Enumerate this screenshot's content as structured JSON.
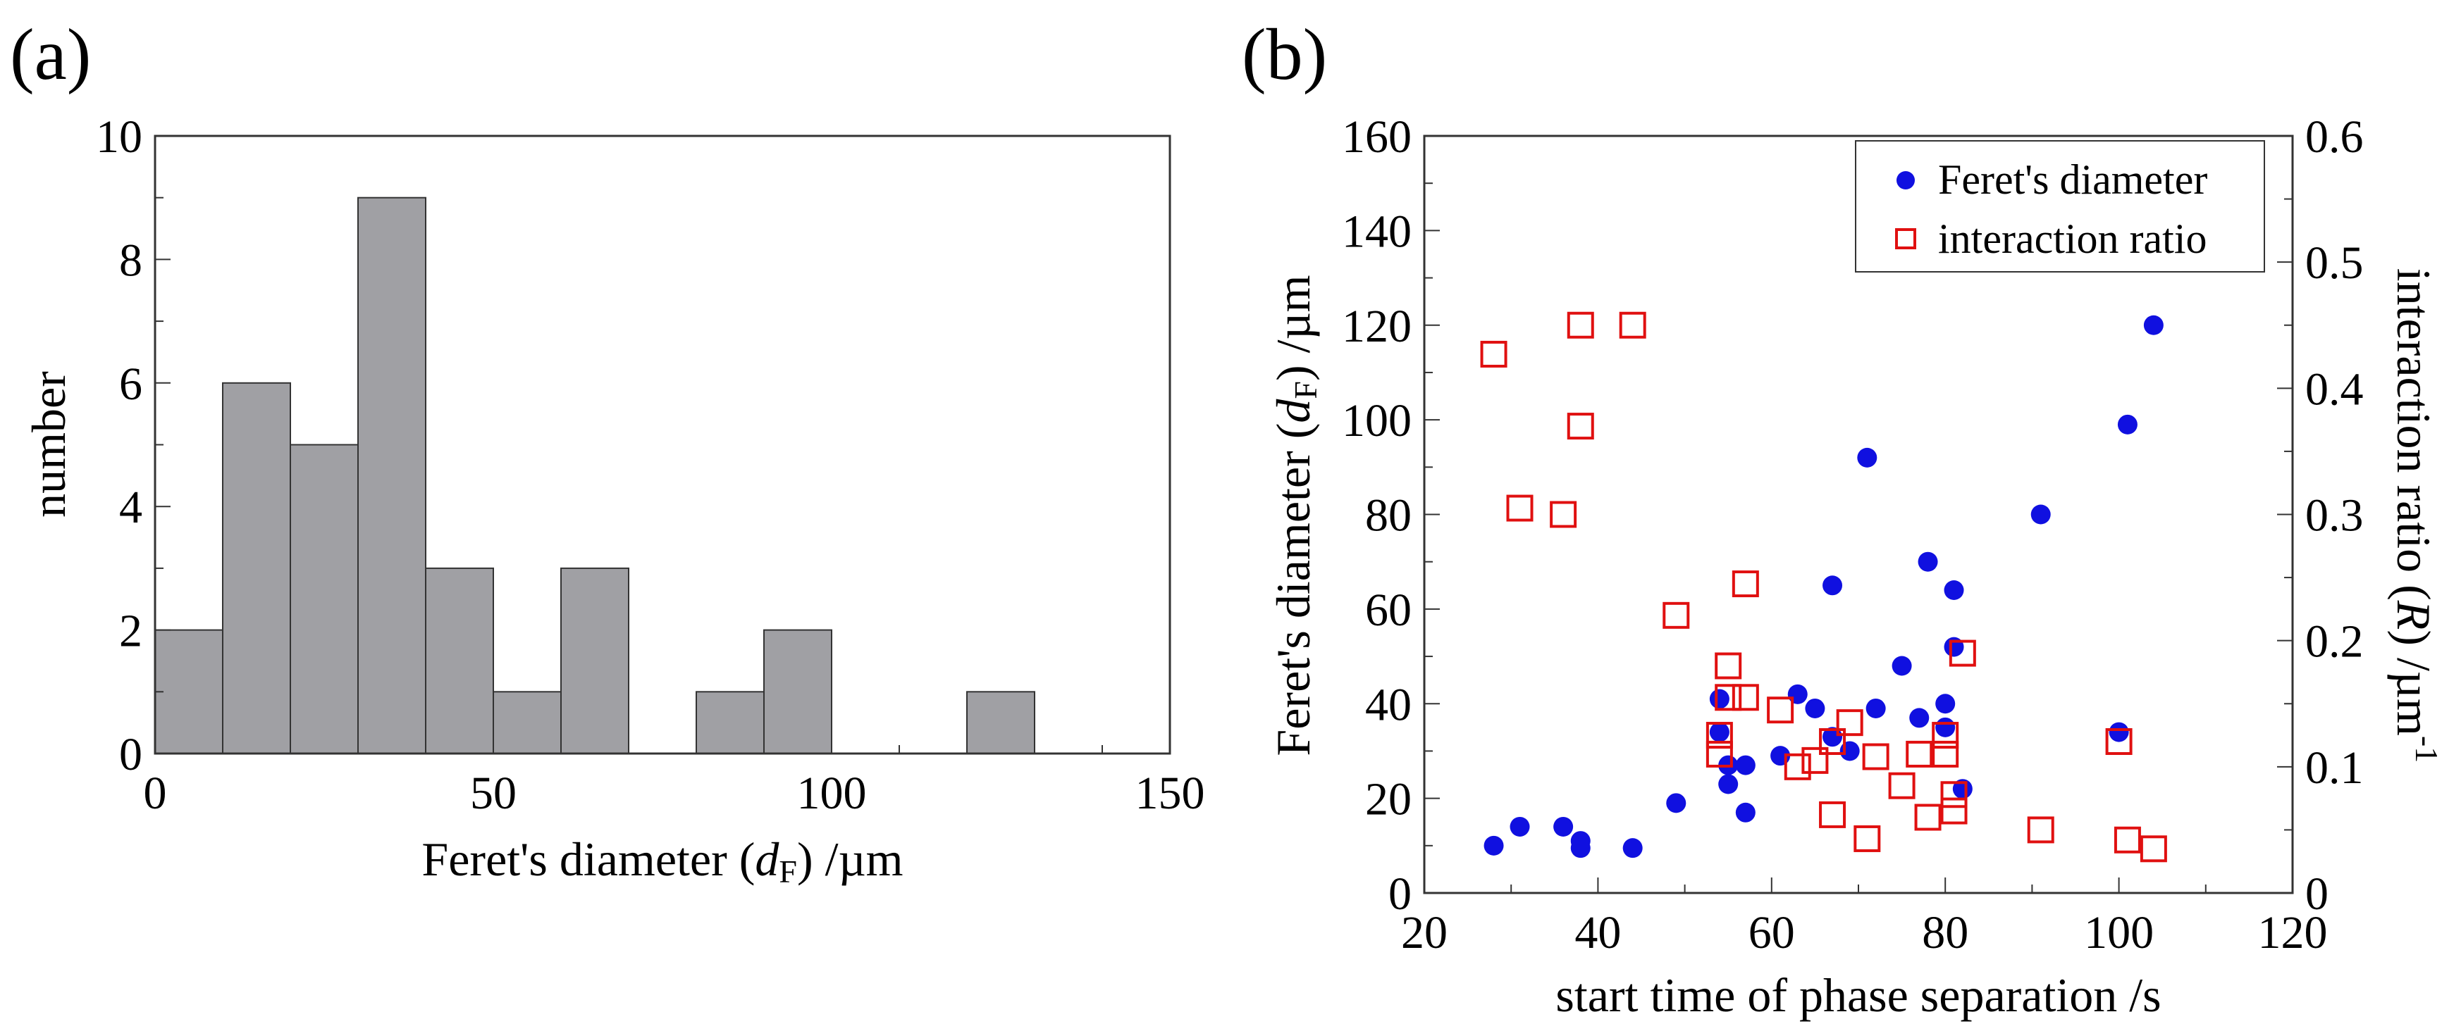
{
  "panel_a": {
    "label": "(a)",
    "chart_data": {
      "type": "bar",
      "title": "",
      "xlabel_pre": "Feret's diameter (",
      "xlabel_var": "d",
      "xlabel_sub": "F",
      "xlabel_post": ") /µm",
      "ylabel": "number",
      "xlim": [
        0,
        150
      ],
      "ylim": [
        0,
        10
      ],
      "xticks": [
        0,
        50,
        100,
        150
      ],
      "yticks": [
        0,
        2,
        4,
        6,
        8,
        10
      ],
      "bin_width": 10,
      "bin_starts": [
        0,
        10,
        20,
        30,
        40,
        50,
        60,
        70,
        80,
        90,
        100,
        110,
        120,
        130,
        140
      ],
      "values": [
        2,
        6,
        5,
        9,
        3,
        1,
        3,
        0,
        1,
        2,
        0,
        0,
        1,
        0,
        0
      ],
      "bar_color": "#a0a0a4",
      "grid": false
    }
  },
  "panel_b": {
    "label": "(b)",
    "chart_data": {
      "type": "scatter",
      "title": "",
      "xlabel": "start time of phase separation /s",
      "ylabel_pre": "Feret's diameter (",
      "ylabel_var": "d",
      "ylabel_sub": "F",
      "ylabel_post": ") /µm",
      "y2label_pre": "interaction ratio (",
      "y2label_var": "R",
      "y2label_post": ") /µm",
      "y2label_sup": "-1",
      "xlim": [
        20,
        120
      ],
      "ylim": [
        0,
        160
      ],
      "y2lim": [
        0,
        0.6
      ],
      "xticks": [
        20,
        40,
        60,
        80,
        100,
        120
      ],
      "yticks": [
        0,
        20,
        40,
        60,
        80,
        100,
        120,
        140,
        160
      ],
      "y2ticks": [
        0,
        0.1,
        0.2,
        0.3,
        0.4,
        0.5,
        0.6
      ],
      "y2tick_labels": [
        "0",
        "0.1",
        "0.2",
        "0.3",
        "0.4",
        "0.5",
        "0.6"
      ],
      "legend_position": "top-right",
      "grid": false,
      "series": [
        {
          "name": "Feret's diameter",
          "marker": "filled-circle",
          "color": "#1010e0",
          "axis": "left",
          "points": [
            [
              28,
              10
            ],
            [
              31,
              14
            ],
            [
              36,
              14
            ],
            [
              38,
              11
            ],
            [
              38,
              9.5
            ],
            [
              44,
              9.5
            ],
            [
              49,
              19
            ],
            [
              54,
              41
            ],
            [
              54,
              34
            ],
            [
              55,
              27
            ],
            [
              55,
              23
            ],
            [
              57,
              27
            ],
            [
              57,
              17
            ],
            [
              61,
              29
            ],
            [
              63,
              42
            ],
            [
              65,
              39
            ],
            [
              67,
              65
            ],
            [
              67,
              33
            ],
            [
              69,
              30
            ],
            [
              71,
              92
            ],
            [
              72,
              39
            ],
            [
              75,
              48
            ],
            [
              77,
              37
            ],
            [
              78,
              70
            ],
            [
              80,
              40
            ],
            [
              80,
              35
            ],
            [
              81,
              64
            ],
            [
              81,
              52
            ],
            [
              82,
              22
            ],
            [
              91,
              80
            ],
            [
              100,
              34
            ],
            [
              101,
              99
            ],
            [
              104,
              120
            ]
          ]
        },
        {
          "name": "interaction ratio",
          "marker": "open-square",
          "color": "#e01010",
          "axis": "right",
          "points": [
            [
              28,
              0.427
            ],
            [
              31,
              0.305
            ],
            [
              36,
              0.3
            ],
            [
              38,
              0.45
            ],
            [
              38,
              0.37
            ],
            [
              44,
              0.45
            ],
            [
              49,
              0.22
            ],
            [
              54,
              0.125
            ],
            [
              54,
              0.11
            ],
            [
              55,
              0.18
            ],
            [
              55,
              0.155
            ],
            [
              57,
              0.245
            ],
            [
              57,
              0.155
            ],
            [
              61,
              0.145
            ],
            [
              63,
              0.1
            ],
            [
              65,
              0.105
            ],
            [
              67,
              0.12
            ],
            [
              67,
              0.062
            ],
            [
              69,
              0.135
            ],
            [
              71,
              0.043
            ],
            [
              72,
              0.108
            ],
            [
              75,
              0.085
            ],
            [
              77,
              0.11
            ],
            [
              78,
              0.06
            ],
            [
              80,
              0.125
            ],
            [
              80,
              0.11
            ],
            [
              81,
              0.065
            ],
            [
              81,
              0.078
            ],
            [
              82,
              0.19
            ],
            [
              91,
              0.05
            ],
            [
              100,
              0.12
            ],
            [
              101,
              0.042
            ],
            [
              104,
              0.035
            ]
          ]
        }
      ]
    }
  }
}
